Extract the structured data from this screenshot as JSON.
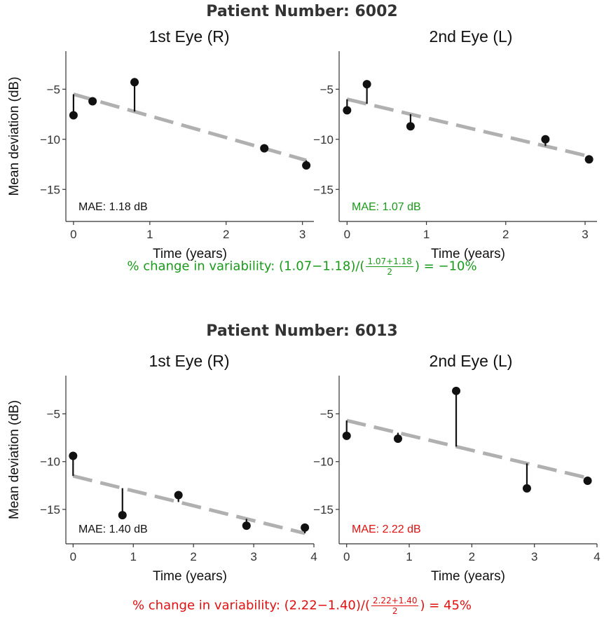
{
  "figures": [
    {
      "title": "Patient Number: 6002",
      "formula": {
        "prefix": "% change in variability: (1.07−1.18)/(",
        "num": "1.07+1.18",
        "den": "2",
        "suffix": ") = −10%",
        "color": "#1a9a1a"
      }
    },
    {
      "title": "Patient Number: 6013",
      "formula": {
        "prefix": "% change in variability: (2.22−1.40)/(",
        "num": "2.22+1.40",
        "den": "2",
        "suffix": ") = 45%",
        "color": "#e01010"
      }
    }
  ],
  "chart_data": [
    {
      "type": "scatter",
      "title": "1st Eye (R)",
      "xlabel": "Time (years)",
      "ylabel": "Mean deviation (dB)",
      "xlim": [
        -0.1,
        3.15
      ],
      "ylim": [
        -18.2,
        -1.2
      ],
      "xticks": [
        0,
        1,
        2,
        3
      ],
      "yticks": [
        -5,
        -10,
        -15
      ],
      "points": [
        [
          0,
          -7.6
        ],
        [
          0.25,
          -6.2
        ],
        [
          0.8,
          -4.3
        ],
        [
          2.5,
          -10.9
        ],
        [
          3.05,
          -12.6
        ]
      ],
      "trend": {
        "x": [
          0,
          3.05
        ],
        "y": [
          -5.5,
          -12.1
        ]
      },
      "annotation": {
        "text": "MAE: 1.18 dB",
        "color": "#111111"
      }
    },
    {
      "type": "scatter",
      "title": "2nd Eye (L)",
      "xlabel": "Time (years)",
      "ylabel": "",
      "xlim": [
        -0.1,
        3.15
      ],
      "ylim": [
        -18.2,
        -1.2
      ],
      "xticks": [
        0,
        1,
        2,
        3
      ],
      "yticks": [
        -5,
        -10,
        -15
      ],
      "points": [
        [
          0,
          -7.1
        ],
        [
          0.25,
          -4.5
        ],
        [
          0.8,
          -8.7
        ],
        [
          2.5,
          -10.0
        ],
        [
          3.05,
          -12.0
        ]
      ],
      "trend": {
        "x": [
          0,
          3.05
        ],
        "y": [
          -6.0,
          -11.7
        ]
      },
      "annotation": {
        "text": "MAE: 1.07 dB",
        "color": "#1a9a1a"
      }
    },
    {
      "type": "scatter",
      "title": "1st Eye (R)",
      "xlabel": "Time (years)",
      "ylabel": "Mean deviation (dB)",
      "xlim": [
        -0.12,
        4.0
      ],
      "ylim": [
        -18.6,
        -1.0
      ],
      "xticks": [
        0,
        1,
        2,
        3,
        4
      ],
      "yticks": [
        -5,
        -10,
        -15
      ],
      "points": [
        [
          0,
          -9.4
        ],
        [
          0.82,
          -15.6
        ],
        [
          1.75,
          -13.5
        ],
        [
          2.88,
          -16.7
        ],
        [
          3.85,
          -16.9
        ]
      ],
      "trend": {
        "x": [
          0,
          3.85
        ],
        "y": [
          -11.5,
          -17.5
        ]
      },
      "annotation": {
        "text": "MAE: 1.40 dB",
        "color": "#111111"
      }
    },
    {
      "type": "scatter",
      "title": "2nd Eye (L)",
      "xlabel": "Time (years)",
      "ylabel": "",
      "xlim": [
        -0.12,
        4.0
      ],
      "ylim": [
        -18.6,
        -1.0
      ],
      "xticks": [
        0,
        1,
        2,
        3,
        4
      ],
      "yticks": [
        -5,
        -10,
        -15
      ],
      "points": [
        [
          0,
          -7.3
        ],
        [
          0.82,
          -7.6
        ],
        [
          1.75,
          -2.6
        ],
        [
          2.88,
          -12.8
        ],
        [
          3.85,
          -12.0
        ]
      ],
      "trend": {
        "x": [
          0,
          3.85
        ],
        "y": [
          -5.7,
          -11.7
        ]
      },
      "annotation": {
        "text": "MAE: 2.22 dB",
        "color": "#e01010"
      }
    }
  ]
}
